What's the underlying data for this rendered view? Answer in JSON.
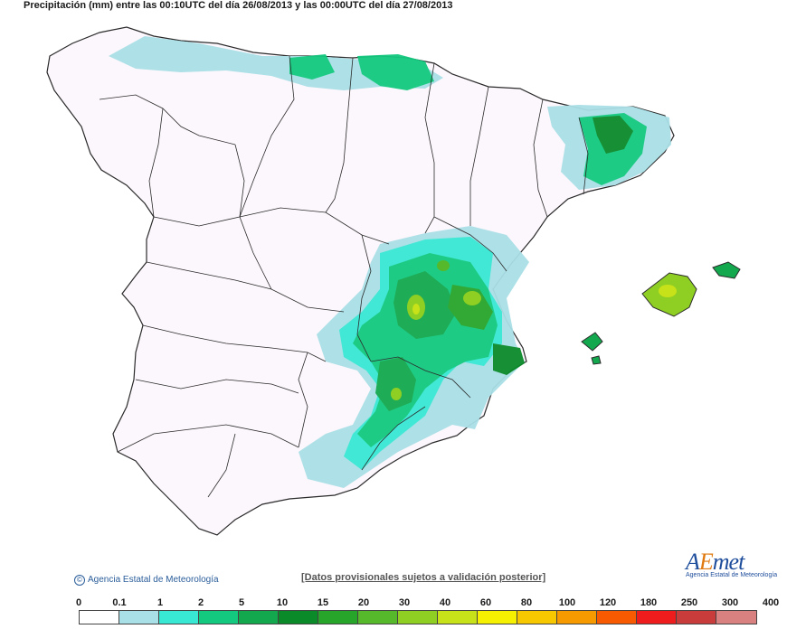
{
  "title": "Precipitación (mm) entre las 00:10UTC del día 26/08/2013 y las 00:00UTC del día 27/08/2013",
  "copyright": "Agencia Estatal de Meteorología",
  "disclaimer": "[Datos provisionales sujetos a validación posterior]",
  "logo": {
    "word_a": "A",
    "word_e": "E",
    "word_rest": "met",
    "subtitle": "Agencia Estatal de Meteorología"
  },
  "legend": {
    "labels": [
      "0",
      "0.1",
      "1",
      "2",
      "5",
      "10",
      "15",
      "20",
      "30",
      "40",
      "60",
      "80",
      "100",
      "120",
      "180",
      "250",
      "300",
      "400"
    ],
    "colors": [
      "#ffffff",
      "#a9dfe6",
      "#38e8d3",
      "#13c97f",
      "#14a84e",
      "#0b8a2a",
      "#27a52a",
      "#55b92b",
      "#8fcf23",
      "#c8e21a",
      "#f6f100",
      "#f7c800",
      "#f79a00",
      "#f75a00",
      "#ee1c1c",
      "#c83c3c",
      "#d98080",
      "#f2c6c6"
    ]
  },
  "map": {
    "land_color": "#fcf7fc",
    "border_color": "#2b2b2b",
    "region": "Península Ibérica (España) y Baleares"
  }
}
